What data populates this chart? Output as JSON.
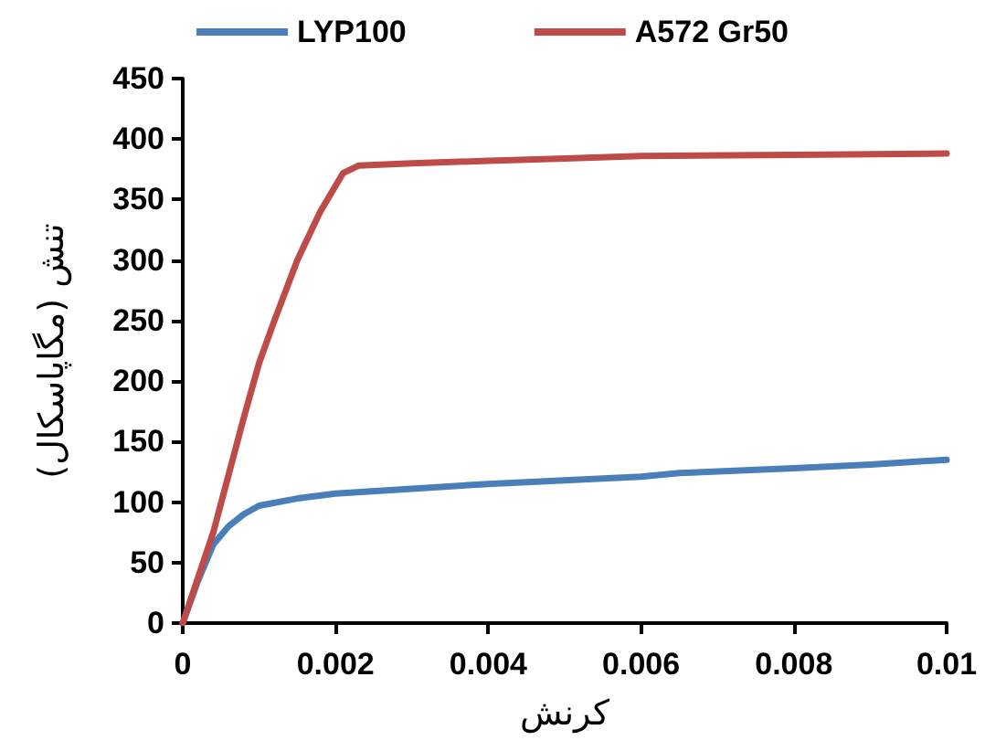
{
  "chart_data": {
    "type": "line",
    "xlabel": "کرنش",
    "ylabel": "تنش (مگاپاسکال)",
    "xlim": [
      0,
      0.01
    ],
    "xticks": [
      0,
      0.002,
      0.004,
      0.006,
      0.008,
      0.01
    ],
    "ylim": [
      0,
      450
    ],
    "yticks": [
      0,
      50,
      100,
      150,
      200,
      250,
      300,
      350,
      400,
      450
    ],
    "grid": false,
    "legend": "top",
    "marker": "none",
    "line_style": "solid",
    "series": [
      {
        "name": "LYP100",
        "color": "#4a7ebb",
        "x": [
          0,
          0.0002,
          0.0004,
          0.0006,
          0.0008,
          0.001,
          0.0015,
          0.002,
          0.003,
          0.004,
          0.005,
          0.006,
          0.0065,
          0.008,
          0.009,
          0.01
        ],
        "values": [
          0,
          35,
          65,
          80,
          90,
          97,
          103,
          107,
          111,
          115,
          118,
          121,
          124,
          128,
          131,
          135
        ]
      },
      {
        "name": "A572 Gr50",
        "color": "#be4b48",
        "x": [
          0,
          0.0004,
          0.0008,
          0.001,
          0.0012,
          0.0015,
          0.0018,
          0.0021,
          0.0023,
          0.003,
          0.004,
          0.005,
          0.006,
          0.008,
          0.01
        ],
        "values": [
          0,
          75,
          170,
          215,
          250,
          300,
          340,
          372,
          378,
          380,
          382,
          384,
          386,
          387,
          388
        ]
      }
    ]
  }
}
